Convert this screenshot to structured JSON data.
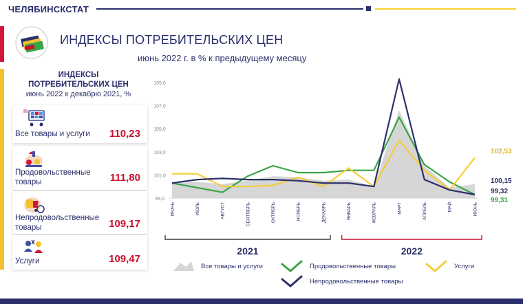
{
  "header": {
    "org": "ЧЕЛЯБИНСКСТАТ",
    "title": "ИНДЕКСЫ ПОТРЕБИТЕЛЬСКИХ ЦЕН",
    "subtitle": "июнь 2022 г. в % к предыдущему месяцу"
  },
  "sidebar": {
    "title_line1": "ИНДЕКСЫ",
    "title_line2": "ПОТРЕБИТЕЛЬСКИХ ЦЕН",
    "subtitle": "июнь 2022 к декабрю 2021, %",
    "items": [
      {
        "label_line1": "Все товары и услуги",
        "label_line2": "",
        "value": "110,23",
        "icon": "shopping-cart-icon"
      },
      {
        "label_line1": "Продовольственные",
        "label_line2": "товары",
        "value": "111,80",
        "icon": "groceries-icon"
      },
      {
        "label_line1": "Непродовольственные",
        "label_line2": "товары",
        "value": "109,17",
        "icon": "goods-icon"
      },
      {
        "label_line1": "Услуги",
        "label_line2": "",
        "value": "109,47",
        "icon": "services-icon"
      }
    ]
  },
  "colors": {
    "navy": "#2b2f6b",
    "red": "#c8102e",
    "green": "#3aa447",
    "yellow": "#f2cd3a",
    "area": "#d6d6d6"
  },
  "chart_data": {
    "type": "line",
    "ylim": [
      99.0,
      109.0
    ],
    "yticks": [
      "99,0",
      "101,0",
      "103,0",
      "105,0",
      "107,0",
      "109,0"
    ],
    "ytick_values": [
      99,
      101,
      103,
      105,
      107,
      109
    ],
    "categories": [
      "ИЮНЬ",
      "ИЮЛЬ",
      "АВГУСТ",
      "СЕНТЯБРЬ",
      "ОКТЯБРЬ",
      "НОЯБРЬ",
      "ДЕКАБРЬ",
      "ЯНВАРЬ",
      "ФЕВРАЛЬ",
      "МАРТ",
      "АПРЕЛЬ",
      "МАЙ",
      "ИЮНЬ"
    ],
    "years": [
      {
        "label": "2021",
        "from": 0,
        "to": 6
      },
      {
        "label": "2022",
        "from": 7,
        "to": 12
      }
    ],
    "series": [
      {
        "name": "Все товары и услуги",
        "kind": "area",
        "color": "#d6d6d6",
        "values": [
          100.3,
          100.4,
          100.2,
          100.5,
          100.9,
          100.8,
          100.5,
          100.6,
          100.0,
          106.6,
          101.8,
          99.9,
          100.2
        ]
      },
      {
        "name": "Продовольственные товары",
        "kind": "line",
        "color": "#3aa447",
        "values": [
          100.3,
          99.9,
          99.5,
          100.9,
          101.8,
          101.2,
          101.2,
          101.4,
          101.4,
          106.0,
          101.9,
          100.4,
          99.3
        ]
      },
      {
        "name": "Услуги",
        "kind": "line",
        "color": "#f2cd3a",
        "values": [
          101.1,
          101.1,
          100.0,
          100.0,
          100.1,
          100.8,
          100.0,
          101.6,
          100.0,
          104.0,
          101.4,
          99.7,
          102.5
        ]
      },
      {
        "name": "Непродовольственные товары",
        "kind": "line",
        "color": "#2b2f6b",
        "values": [
          100.3,
          100.6,
          100.7,
          100.6,
          100.6,
          100.5,
          100.3,
          100.3,
          100.0,
          109.3,
          100.6,
          99.7,
          99.3
        ]
      }
    ],
    "end_labels": [
      {
        "text": "102,53",
        "color": "#e0b52a",
        "value": 102.53
      },
      {
        "text": "100,15",
        "color": "#2b2f6b",
        "value": 100.15
      },
      {
        "text": "99,32",
        "color": "#2b2f6b",
        "value": 99.32
      },
      {
        "text": "99,31",
        "color": "#3aa447",
        "value": 99.31
      }
    ],
    "legend": [
      {
        "label": "Все товары и услуги",
        "kind": "area",
        "color": "#d6d6d6"
      },
      {
        "label": "Продовольственные товары",
        "kind": "line",
        "color": "#3aa447"
      },
      {
        "label": "Услуги",
        "kind": "line",
        "color": "#f2cd3a"
      },
      {
        "label": "Непродовольственные товары",
        "kind": "line",
        "color": "#2b2f6b"
      }
    ]
  }
}
